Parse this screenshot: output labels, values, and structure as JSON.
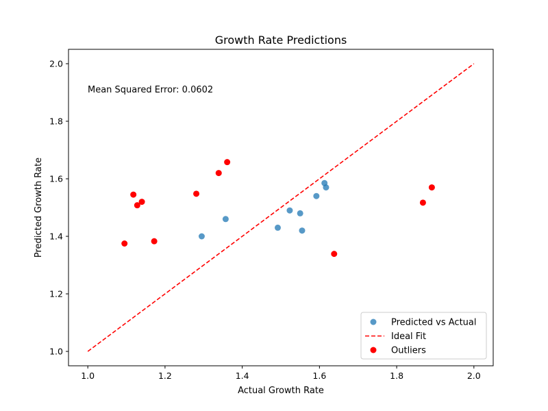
{
  "chart_data": {
    "type": "scatter",
    "title": "Growth Rate Predictions",
    "xlabel": "Actual Growth Rate",
    "ylabel": "Predicted Growth Rate",
    "xlim": [
      0.95,
      2.05
    ],
    "ylim": [
      0.95,
      2.05
    ],
    "xticks": [
      "1.0",
      "1.2",
      "1.4",
      "1.6",
      "1.8",
      "2.0"
    ],
    "yticks": [
      "1.0",
      "1.2",
      "1.4",
      "1.6",
      "1.8",
      "2.0"
    ],
    "grid": false,
    "legend_position": "lower-right",
    "annotation": "Mean Squared Error: 0.0602",
    "series": [
      {
        "name": "Predicted vs Actual",
        "kind": "scatter",
        "color": "#1f77b4",
        "points": [
          {
            "x": 1.295,
            "y": 1.4
          },
          {
            "x": 1.357,
            "y": 1.46
          },
          {
            "x": 1.492,
            "y": 1.43
          },
          {
            "x": 1.523,
            "y": 1.49
          },
          {
            "x": 1.55,
            "y": 1.48
          },
          {
            "x": 1.555,
            "y": 1.42
          },
          {
            "x": 1.592,
            "y": 1.54
          },
          {
            "x": 1.613,
            "y": 1.585
          },
          {
            "x": 1.617,
            "y": 1.57
          }
        ]
      },
      {
        "name": "Ideal Fit",
        "kind": "line",
        "style": "dashed",
        "color": "#ff0000",
        "points": [
          {
            "x": 1.0,
            "y": 1.0
          },
          {
            "x": 2.0,
            "y": 2.0
          }
        ]
      },
      {
        "name": "Outliers",
        "kind": "scatter",
        "color": "#ff0000",
        "points": [
          {
            "x": 1.095,
            "y": 1.375
          },
          {
            "x": 1.118,
            "y": 1.545
          },
          {
            "x": 1.128,
            "y": 1.508
          },
          {
            "x": 1.14,
            "y": 1.52
          },
          {
            "x": 1.172,
            "y": 1.383
          },
          {
            "x": 1.281,
            "y": 1.548
          },
          {
            "x": 1.339,
            "y": 1.62
          },
          {
            "x": 1.361,
            "y": 1.658
          },
          {
            "x": 1.638,
            "y": 1.339
          },
          {
            "x": 1.868,
            "y": 1.517
          },
          {
            "x": 1.891,
            "y": 1.57
          }
        ]
      }
    ]
  }
}
